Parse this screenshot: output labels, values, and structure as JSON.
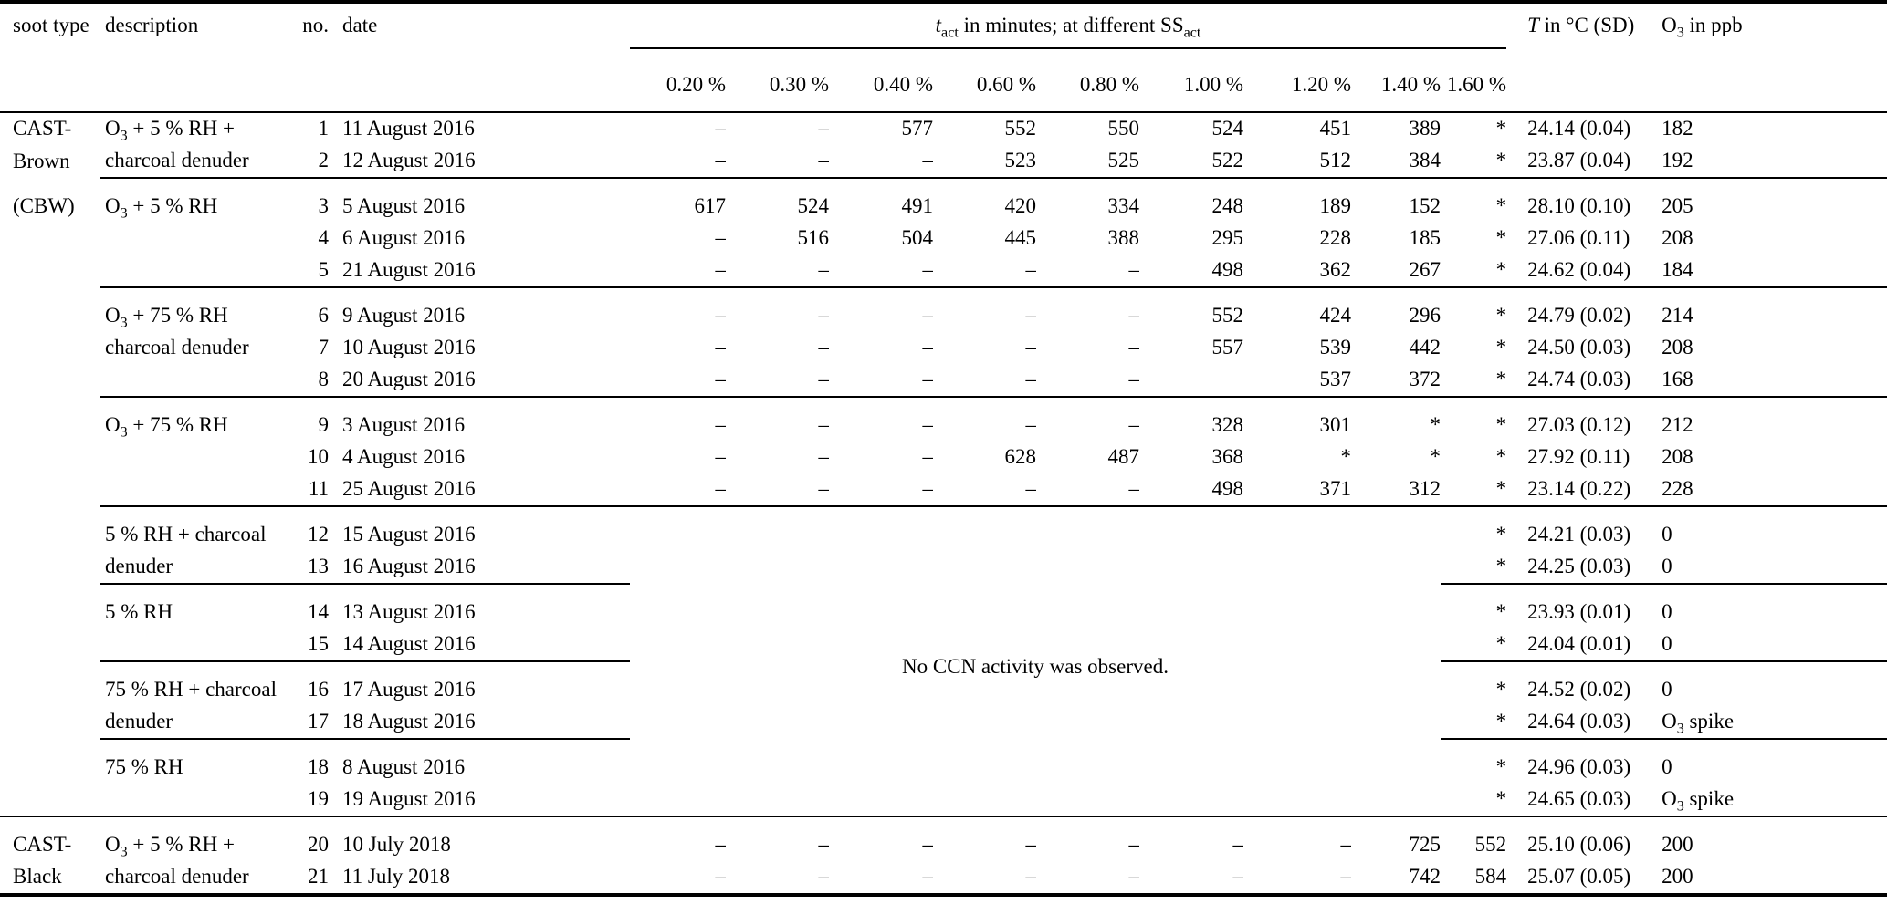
{
  "title_row": {
    "soot_type": "soot type",
    "description": "description",
    "no": "no.",
    "date": "date",
    "tact": {
      "t": "t",
      "t_sub": "act",
      "mid": " in minutes; at different SS",
      "ss_sub": "act"
    },
    "temp": {
      "T": "T",
      "rest": " in °C (SD)"
    },
    "o3": "O~3~ in ppb"
  },
  "ss_labels": [
    "0.20 %",
    "0.30 %",
    "0.40 %",
    "0.60 %",
    "0.80 %",
    "1.00 %",
    "1.20 %",
    "1.40 %",
    "1.60 %"
  ],
  "no_ccn_note": "No CCN activity was observed.",
  "rows": [
    {
      "soot": "CAST-",
      "desc": "O~3~ + 5 % RH +",
      "no": "1",
      "date": "11 August 2016",
      "ss": [
        "–",
        "–",
        "577",
        "552",
        "550",
        "524",
        "451",
        "389",
        "*"
      ],
      "temp": "24.14 (0.04)",
      "o3": "182",
      "sep": "none",
      "merged": false
    },
    {
      "soot": "Brown",
      "desc": "charcoal denuder",
      "no": "2",
      "date": "12 August 2016",
      "ss": [
        "–",
        "–",
        "–",
        "523",
        "525",
        "522",
        "512",
        "384",
        "*"
      ],
      "temp": "23.87 (0.04)",
      "o3": "192",
      "sep": "none",
      "merged": false
    },
    {
      "soot": "(CBW)",
      "desc": "O~3~ + 5 % RH",
      "no": "3",
      "date": "5 August 2016",
      "ss": [
        "617",
        "524",
        "491",
        "420",
        "334",
        "248",
        "189",
        "152",
        "*"
      ],
      "temp": "28.10 (0.10)",
      "o3": "205",
      "sep": "group",
      "merged": false
    },
    {
      "soot": "",
      "desc": "",
      "no": "4",
      "date": "6 August 2016",
      "ss": [
        "–",
        "516",
        "504",
        "445",
        "388",
        "295",
        "228",
        "185",
        "*"
      ],
      "temp": "27.06 (0.11)",
      "o3": "208",
      "sep": "none",
      "merged": false
    },
    {
      "soot": "",
      "desc": "",
      "no": "5",
      "date": "21 August 2016",
      "ss": [
        "–",
        "–",
        "–",
        "–",
        "–",
        "498",
        "362",
        "267",
        "*"
      ],
      "temp": "24.62 (0.04)",
      "o3": "184",
      "sep": "none",
      "merged": false
    },
    {
      "soot": "",
      "desc": "O~3~ + 75 % RH",
      "no": "6",
      "date": "9 August 2016",
      "ss": [
        "–",
        "–",
        "–",
        "–",
        "–",
        "552",
        "424",
        "296",
        "*"
      ],
      "temp": "24.79 (0.02)",
      "o3": "214",
      "sep": "group",
      "merged": false
    },
    {
      "soot": "",
      "desc": "charcoal denuder",
      "no": "7",
      "date": "10 August 2016",
      "ss": [
        "–",
        "–",
        "–",
        "–",
        "–",
        "557",
        "539",
        "442",
        "*"
      ],
      "temp": "24.50 (0.03)",
      "o3": "208",
      "sep": "none",
      "merged": false
    },
    {
      "soot": "",
      "desc": "",
      "no": "8",
      "date": "20 August 2016",
      "ss": [
        "–",
        "–",
        "–",
        "–",
        "–",
        "",
        "537",
        "372",
        "*"
      ],
      "temp": "24.74 (0.03)",
      "o3": "168",
      "sep": "none",
      "merged": false
    },
    {
      "soot": "",
      "desc": "O~3~ + 75 % RH",
      "no": "9",
      "date": "3 August 2016",
      "ss": [
        "–",
        "–",
        "–",
        "–",
        "–",
        "328",
        "301",
        "*",
        "*"
      ],
      "temp": "27.03 (0.12)",
      "o3": "212",
      "sep": "group",
      "merged": false
    },
    {
      "soot": "",
      "desc": "",
      "no": "10",
      "date": "4 August 2016",
      "ss": [
        "–",
        "–",
        "–",
        "628",
        "487",
        "368",
        "*",
        "*",
        "*"
      ],
      "temp": "27.92 (0.11)",
      "o3": "208",
      "sep": "none",
      "merged": false
    },
    {
      "soot": "",
      "desc": "",
      "no": "11",
      "date": "25 August 2016",
      "ss": [
        "–",
        "–",
        "–",
        "–",
        "–",
        "498",
        "371",
        "312",
        "*"
      ],
      "temp": "23.14 (0.22)",
      "o3": "228",
      "sep": "none",
      "merged": false
    },
    {
      "soot": "",
      "desc": "5 % RH + charcoal",
      "no": "12",
      "date": "15 August 2016",
      "ss": [
        "",
        "",
        "",
        "",
        "",
        "",
        "",
        "",
        "*"
      ],
      "temp": "24.21 (0.03)",
      "o3": "0",
      "sep": "group",
      "merged": true
    },
    {
      "soot": "",
      "desc": "denuder",
      "no": "13",
      "date": "16 August 2016",
      "ss": [
        "",
        "",
        "",
        "",
        "",
        "",
        "",
        "",
        "*"
      ],
      "temp": "24.25 (0.03)",
      "o3": "0",
      "sep": "none",
      "merged": true
    },
    {
      "soot": "",
      "desc": "5 % RH",
      "no": "14",
      "date": "13 August 2016",
      "ss": [
        "",
        "",
        "",
        "",
        "",
        "",
        "",
        "",
        "*"
      ],
      "temp": "23.93 (0.01)",
      "o3": "0",
      "sep": "partial",
      "merged": true
    },
    {
      "soot": "",
      "desc": "",
      "no": "15",
      "date": "14 August 2016",
      "ss": [
        "",
        "",
        "",
        "",
        "",
        "",
        "",
        "",
        "*"
      ],
      "temp": "24.04 (0.01)",
      "o3": "0",
      "sep": "none",
      "merged": true
    },
    {
      "soot": "",
      "desc": "75 % RH + charcoal",
      "no": "16",
      "date": "17 August 2016",
      "ss": [
        "",
        "",
        "",
        "",
        "",
        "",
        "",
        "",
        "*"
      ],
      "temp": "24.52 (0.02)",
      "o3": "0",
      "sep": "partial",
      "merged": true
    },
    {
      "soot": "",
      "desc": "denuder",
      "no": "17",
      "date": "18 August 2016",
      "ss": [
        "",
        "",
        "",
        "",
        "",
        "",
        "",
        "",
        "*"
      ],
      "temp": "24.64 (0.03)",
      "o3": "O~3~ spike",
      "sep": "none",
      "merged": true
    },
    {
      "soot": "",
      "desc": "75 % RH",
      "no": "18",
      "date": "8 August 2016",
      "ss": [
        "",
        "",
        "",
        "",
        "",
        "",
        "",
        "",
        "*"
      ],
      "temp": "24.96 (0.03)",
      "o3": "0",
      "sep": "partial",
      "merged": true
    },
    {
      "soot": "",
      "desc": "",
      "no": "19",
      "date": "19 August 2016",
      "ss": [
        "",
        "",
        "",
        "",
        "",
        "",
        "",
        "",
        "*"
      ],
      "temp": "24.65 (0.03)",
      "o3": "O~3~ spike",
      "sep": "none",
      "merged": true
    },
    {
      "soot": "CAST-",
      "desc": "O~3~ + 5 % RH +",
      "no": "20",
      "date": "10 July 2018",
      "ss": [
        "–",
        "–",
        "–",
        "–",
        "–",
        "–",
        "–",
        "725",
        "552"
      ],
      "temp": "25.10 (0.06)",
      "o3": "200",
      "sep": "section",
      "merged": false
    },
    {
      "soot": "Black",
      "desc": "charcoal denuder",
      "no": "21",
      "date": "11 July 2018",
      "ss": [
        "–",
        "–",
        "–",
        "–",
        "–",
        "–",
        "–",
        "742",
        "584"
      ],
      "temp": "25.07 (0.05)",
      "o3": "200",
      "sep": "none",
      "merged": false
    }
  ]
}
